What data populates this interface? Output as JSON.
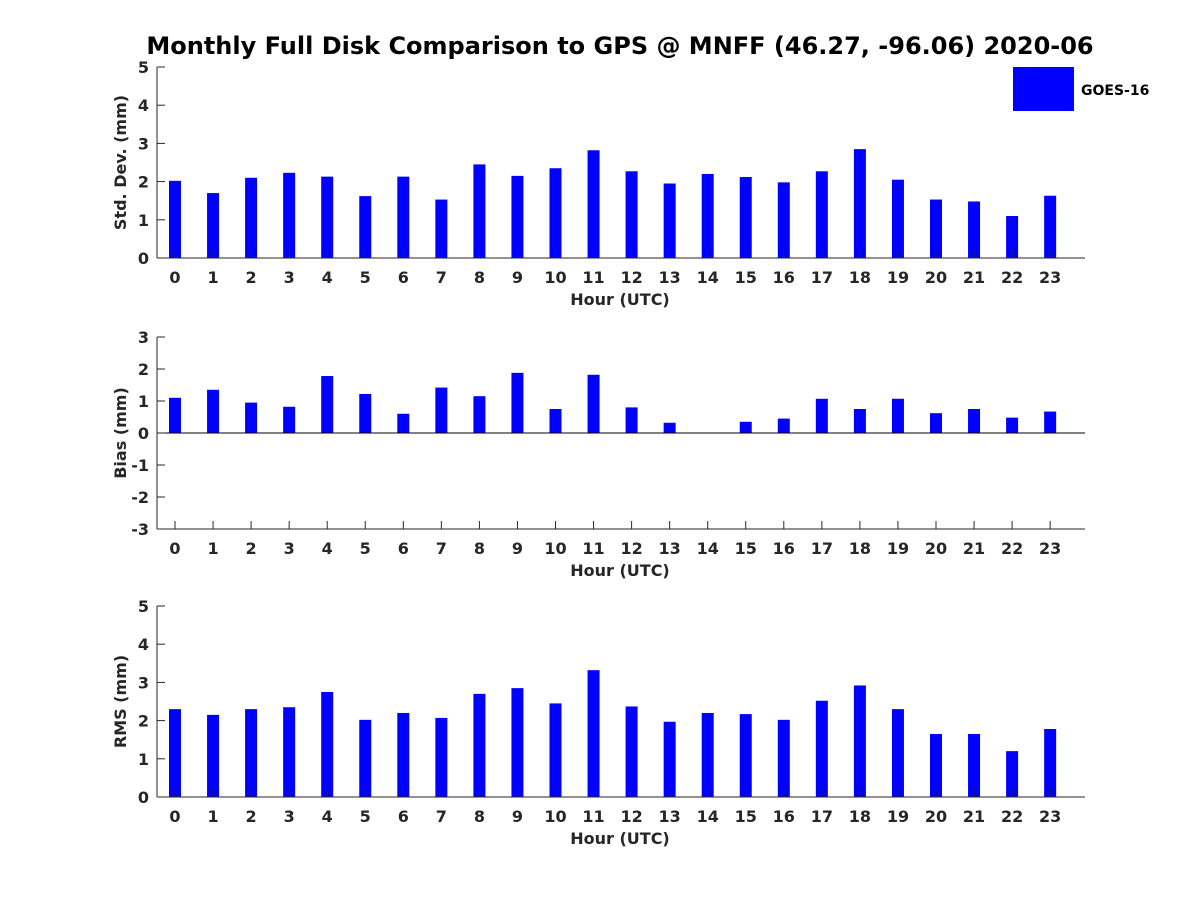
{
  "chart_data": {
    "title": "Monthly Full Disk Comparison to GPS @ MNFF (46.27, -96.06) 2020-06",
    "type": "bar",
    "legend": {
      "placement": "top-right",
      "entries": [
        "GOES-16"
      ]
    },
    "series_color": "#0000ff",
    "categories": [
      "0",
      "1",
      "2",
      "3",
      "4",
      "5",
      "6",
      "7",
      "8",
      "9",
      "10",
      "11",
      "12",
      "13",
      "14",
      "15",
      "16",
      "17",
      "18",
      "19",
      "20",
      "21",
      "22",
      "23"
    ],
    "panels": [
      {
        "ylabel": "Std. Dev. (mm)",
        "xlabel": "Hour (UTC)",
        "ylim": [
          0,
          5
        ],
        "yticks": [
          "0",
          "1",
          "2",
          "3",
          "4",
          "5"
        ],
        "series": [
          {
            "name": "GOES-16",
            "values": [
              2.02,
              1.7,
              2.1,
              2.23,
              2.13,
              1.62,
              2.13,
              1.53,
              2.45,
              2.15,
              2.35,
              2.82,
              2.27,
              1.95,
              2.2,
              2.12,
              1.98,
              2.27,
              2.85,
              2.05,
              1.53,
              1.48,
              1.1,
              1.63
            ]
          }
        ]
      },
      {
        "ylabel": "Bias (mm)",
        "xlabel": "Hour (UTC)",
        "ylim": [
          -3,
          3
        ],
        "yticks": [
          "-3",
          "-2",
          "-1",
          "0",
          "1",
          "2",
          "3"
        ],
        "series": [
          {
            "name": "GOES-16",
            "values": [
              1.1,
              1.35,
              0.95,
              0.82,
              1.78,
              1.22,
              0.6,
              1.42,
              1.15,
              1.88,
              0.75,
              1.82,
              0.8,
              0.32,
              0,
              0.35,
              0.45,
              1.07,
              0.75,
              1.07,
              0.62,
              0.75,
              0.48,
              0.67
            ]
          }
        ]
      },
      {
        "ylabel": "RMS (mm)",
        "xlabel": "Hour (UTC)",
        "ylim": [
          0,
          5
        ],
        "yticks": [
          "0",
          "1",
          "2",
          "3",
          "4",
          "5"
        ],
        "series": [
          {
            "name": "GOES-16",
            "values": [
              2.3,
              2.15,
              2.3,
              2.35,
              2.75,
              2.02,
              2.2,
              2.07,
              2.7,
              2.85,
              2.45,
              3.32,
              2.37,
              1.97,
              2.2,
              2.17,
              2.02,
              2.52,
              2.92,
              2.3,
              1.65,
              1.65,
              1.2,
              1.78
            ]
          }
        ]
      }
    ]
  }
}
